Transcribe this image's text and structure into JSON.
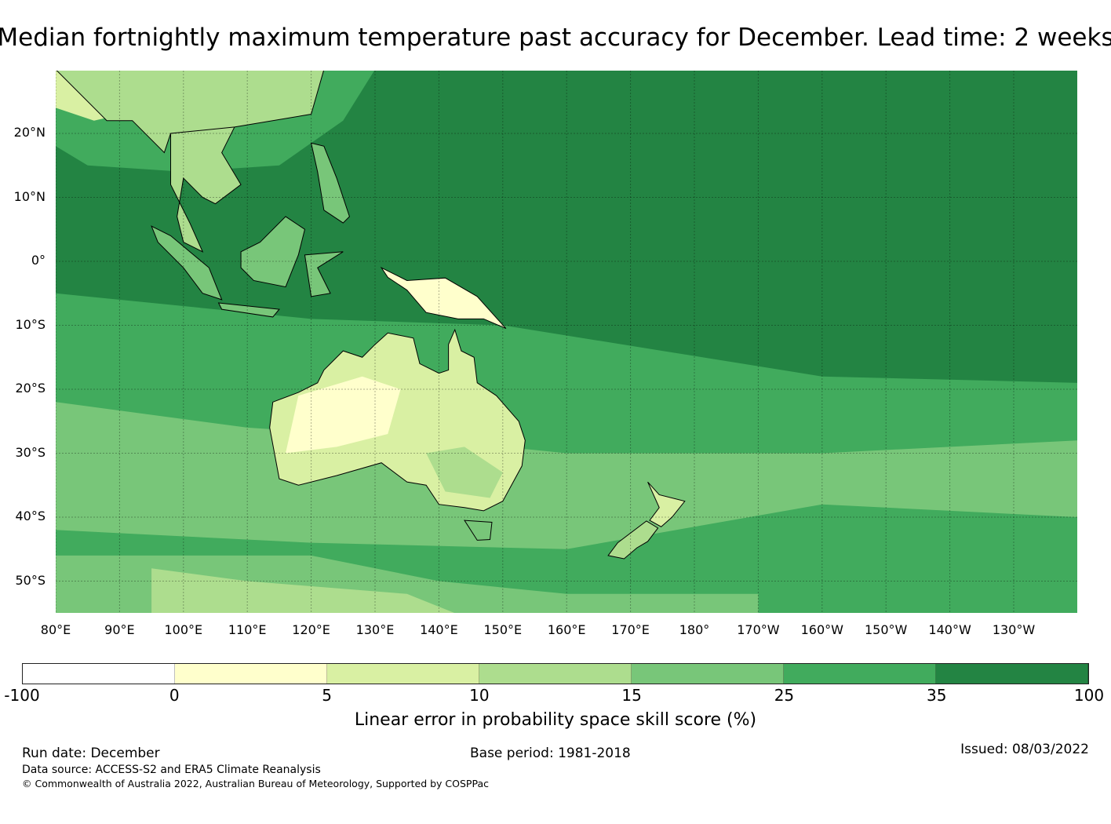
{
  "title": "Median fortnightly maximum temperature past accuracy for December. Lead time: 2 weeks",
  "map": {
    "lat_labels": [
      "20°N",
      "10°N",
      "0°",
      "10°S",
      "20°S",
      "30°S",
      "40°S",
      "50°S"
    ],
    "lats": [
      20,
      10,
      0,
      -10,
      -20,
      -30,
      -40,
      -50
    ],
    "lon_labels": [
      "80°E",
      "90°E",
      "100°E",
      "110°E",
      "120°E",
      "130°E",
      "140°E",
      "150°E",
      "160°E",
      "170°E",
      "180°",
      "170°W",
      "160°W",
      "150°W",
      "140°W",
      "130°W"
    ],
    "lons": [
      80,
      90,
      100,
      110,
      120,
      130,
      140,
      150,
      160,
      170,
      180,
      190,
      200,
      210,
      220,
      230
    ]
  },
  "colorbar": {
    "ticks": [
      "-100",
      "0",
      "5",
      "10",
      "15",
      "25",
      "35",
      "100"
    ],
    "colors": [
      "#ffffff",
      "#ffffcc",
      "#d9f0a3",
      "#addd8e",
      "#78c679",
      "#41ab5d",
      "#238443"
    ],
    "label": "Linear error in probability space skill score (%)"
  },
  "footer": {
    "run_date": "Run date: December",
    "base_period": "Base period: 1981-2018",
    "issued": "Issued: 08/03/2022",
    "source": "Data source: ACCESS-S2 and ERA5 Climate Reanalysis",
    "copyright": "© Commonwealth of Australia 2022, Australian Bureau of Meteorology, Supported by COSPPac"
  }
}
